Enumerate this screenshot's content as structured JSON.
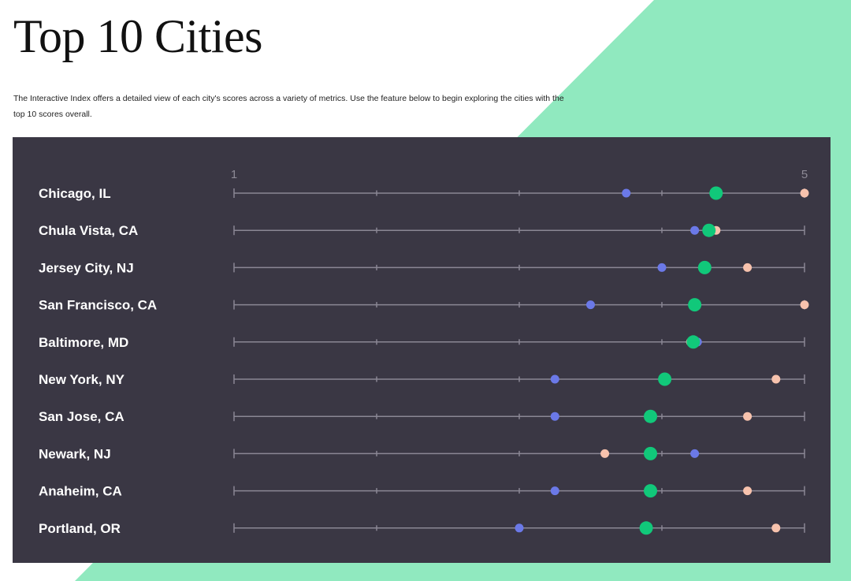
{
  "page": {
    "title": "Top 10 Cities",
    "description": "The Interactive Index offers a detailed view of each city's scores across a variety of metrics. Use the feature below to begin exploring the cities with the top 10 scores overall."
  },
  "colors": {
    "background": "#ffffff",
    "accent_mint": "#90e9bf",
    "panel": "#3a3744",
    "track": "#8a8794",
    "series_green": "#11c87a",
    "series_blue": "#6b79e8",
    "series_peach": "#f7c2ad"
  },
  "chart_data": {
    "type": "scatter",
    "title": "",
    "xlabel": "",
    "ylabel": "",
    "xlim": [
      1,
      5
    ],
    "x_tick_labels": [
      "1",
      "5"
    ],
    "x_ticks": [
      1,
      2,
      3,
      4,
      5
    ],
    "grid": false,
    "legend": "none",
    "categories": [
      "Chicago, IL",
      "Chula Vista, CA",
      "Jersey City, NJ",
      "San Francisco, CA",
      "Baltimore, MD",
      "New York, NY",
      "San Jose, CA",
      "Newark, NJ",
      "Anaheim, CA",
      "Portland, OR"
    ],
    "series": [
      {
        "color": "#6b79e8",
        "radius": 5.5,
        "values": [
          3.75,
          4.23,
          4.0,
          3.5,
          4.25,
          3.25,
          3.25,
          4.23,
          3.25,
          3.0
        ]
      },
      {
        "color": "#f7c2ad",
        "radius": 5.5,
        "values": [
          5.0,
          4.38,
          4.6,
          5.0,
          4.2,
          4.8,
          4.6,
          3.6,
          4.6,
          4.8
        ]
      },
      {
        "color": "#11c87a",
        "radius": 8.5,
        "values": [
          4.38,
          4.33,
          4.3,
          4.23,
          4.22,
          4.02,
          3.92,
          3.92,
          3.92,
          3.89
        ]
      }
    ]
  }
}
